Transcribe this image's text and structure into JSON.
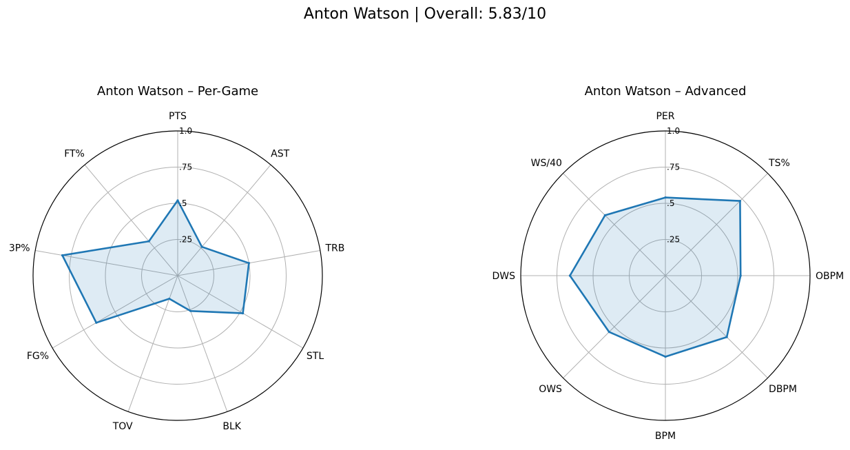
{
  "figure": {
    "suptitle": "Anton Watson | Overall: 5.83/10"
  },
  "chart_data": [
    {
      "type": "radar",
      "title": "Anton Watson – Per-Game",
      "categories": [
        "PTS",
        "AST",
        "TRB",
        "STL",
        "BLK",
        "TOV",
        "FG%",
        "3P%",
        "FT%"
      ],
      "values": [
        0.52,
        0.26,
        0.5,
        0.52,
        0.26,
        0.17,
        0.65,
        0.81,
        0.31
      ],
      "rlim": [
        0,
        1.0
      ],
      "rticks": [
        0.25,
        0.5,
        0.75,
        1.0
      ],
      "rtick_labels": [
        ".25",
        ".5",
        ".75",
        "1.0"
      ],
      "grid": true,
      "color": "#1f77b4"
    },
    {
      "type": "radar",
      "title": "Anton Watson – Advanced",
      "categories": [
        "PER",
        "TS%",
        "OBPM",
        "DBPM",
        "BPM",
        "OWS",
        "DWS",
        "WS/40"
      ],
      "values": [
        0.54,
        0.73,
        0.52,
        0.6,
        0.56,
        0.55,
        0.66,
        0.59
      ],
      "rlim": [
        0,
        1.0
      ],
      "rticks": [
        0.25,
        0.5,
        0.75,
        1.0
      ],
      "rtick_labels": [
        ".25",
        ".5",
        ".75",
        "1.0"
      ],
      "grid": true,
      "color": "#1f77b4"
    }
  ]
}
